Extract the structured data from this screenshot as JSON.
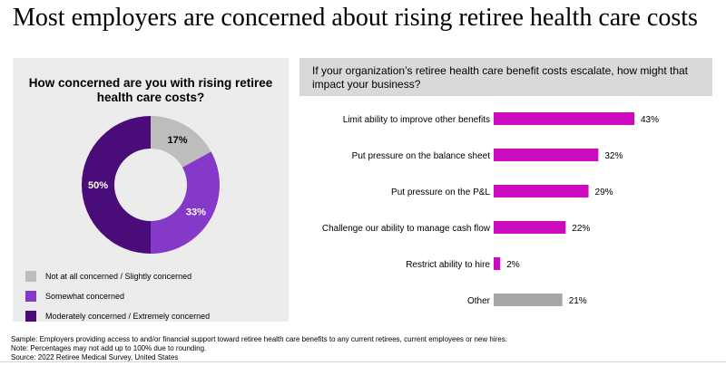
{
  "title": "Most employers are concerned about rising retiree health care costs",
  "colors": {
    "light_gray": "#bdbdbd",
    "purple": "#8439c8",
    "dark_purple": "#4a0c78",
    "magenta": "#cc0bbf",
    "gray_bar": "#a6a6a6",
    "panel_bg": "#ececec",
    "header_bg": "#d9d9d9"
  },
  "chart_data": [
    {
      "type": "pie",
      "variant": "donut",
      "title": "How concerned are you with rising retiree health care costs?",
      "categories": [
        "Not at all concerned / Slightly concerned",
        "Somewhat concerned",
        "Moderately concerned / Extremely concerned"
      ],
      "values": [
        17,
        33,
        50
      ],
      "value_labels": [
        "17%",
        "33%",
        "50%"
      ],
      "colors": [
        "#bdbdbd",
        "#8439c8",
        "#4a0c78"
      ],
      "label_colors": [
        "#000000",
        "#ffffff",
        "#ffffff"
      ],
      "legend": "bottom-left"
    },
    {
      "type": "bar",
      "orientation": "horizontal",
      "title": "If your organization’s retiree health care benefit costs escalate, how might that impact your business?",
      "categories": [
        "Limit ability to improve other benefits",
        "Put pressure on the balance sheet",
        "Put pressure on the P&L",
        "Challenge our ability to manage cash flow",
        "Restrict ability to hire",
        "Other"
      ],
      "values": [
        43,
        32,
        29,
        22,
        2,
        21
      ],
      "value_labels": [
        "43%",
        "32%",
        "29%",
        "22%",
        "2%",
        "21%"
      ],
      "colors": [
        "#cc0bbf",
        "#cc0bbf",
        "#cc0bbf",
        "#cc0bbf",
        "#cc0bbf",
        "#a6a6a6"
      ],
      "xlim": [
        0,
        43
      ],
      "grid": false
    }
  ],
  "footnotes": [
    "Sample: Employers providing access to and/or financial support toward retiree health care benefits to any current retirees, current employees or new hires.",
    "Note: Percentages may not add up to 100% due to rounding.",
    "Source: 2022 Retiree Medical Survey, United States"
  ]
}
